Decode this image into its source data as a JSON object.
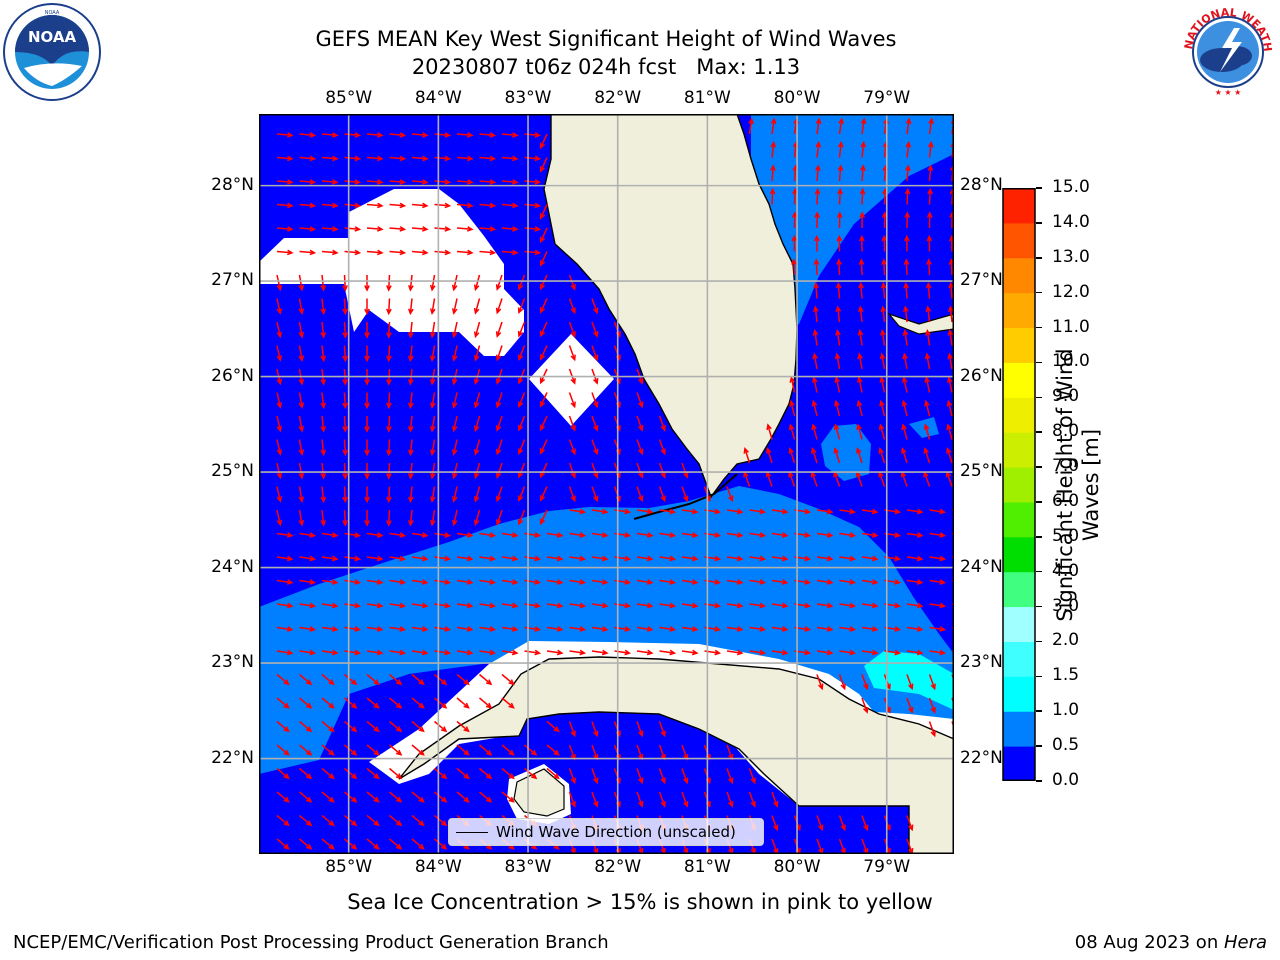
{
  "title": {
    "line1": "GEFS MEAN Key West Significant Height of Wind Waves",
    "line2": "20230807 t06z 024h fcst   Max: 1.13"
  },
  "logos": {
    "noaa": {
      "label": "NOAA",
      "ring_text": "NATIONAL OCEANIC AND ATMOSPHERIC ADMINISTRATION · U.S. DEPARTMENT OF COMMERCE"
    },
    "nws": {
      "ring_text": "NATIONAL WEATHER SERVICE"
    }
  },
  "map": {
    "lon_ticks": [
      "85°W",
      "84°W",
      "83°W",
      "82°W",
      "81°W",
      "80°W",
      "79°W"
    ],
    "lon_values": [
      -85,
      -84,
      -83,
      -82,
      -81,
      -80,
      -79
    ],
    "lat_ticks": [
      "28°N",
      "27°N",
      "26°N",
      "25°N",
      "24°N",
      "23°N",
      "22°N"
    ],
    "lat_values": [
      28,
      27,
      26,
      25,
      24,
      23,
      22
    ],
    "extent": {
      "lon_min": -86,
      "lon_max": -78.25,
      "lat_min": 21,
      "lat_max": 28.75
    },
    "grid": true,
    "arrow_color": "#ff0000",
    "land_color": "#efefdb",
    "legend_label": "Wind Wave Direction (unscaled)"
  },
  "colorbar": {
    "label": "Significant Height of Wind Waves [m]",
    "ticks": [
      "15.0",
      "14.0",
      "13.0",
      "12.0",
      "11.0",
      "10.0",
      "9.0",
      "8.0",
      "7.0",
      "6.0",
      "5.0",
      "4.0",
      "3.0",
      "2.0",
      "1.5",
      "1.0",
      "0.5",
      "0.0"
    ],
    "levels": [
      0,
      0.5,
      1,
      1.5,
      2,
      3,
      4,
      5,
      6,
      7,
      8,
      9,
      10,
      11,
      12,
      13,
      14,
      15
    ],
    "colors": [
      "#0000ff",
      "#0080ff",
      "#00ffff",
      "#40ffff",
      "#a0ffff",
      "#40ff80",
      "#00dd00",
      "#50ee00",
      "#a0ee00",
      "#ccee00",
      "#eeee00",
      "#ffff00",
      "#ffcc00",
      "#ffaa00",
      "#ff8800",
      "#ff5500",
      "#ff2200"
    ]
  },
  "subcaption": "Sea Ice Concentration > 15% is shown in pink to yellow",
  "footer": {
    "left": "NCEP/EMC/Verification Post Processing Product Generation Branch",
    "date": "08 Aug 2023 on ",
    "machine": "Hera"
  }
}
